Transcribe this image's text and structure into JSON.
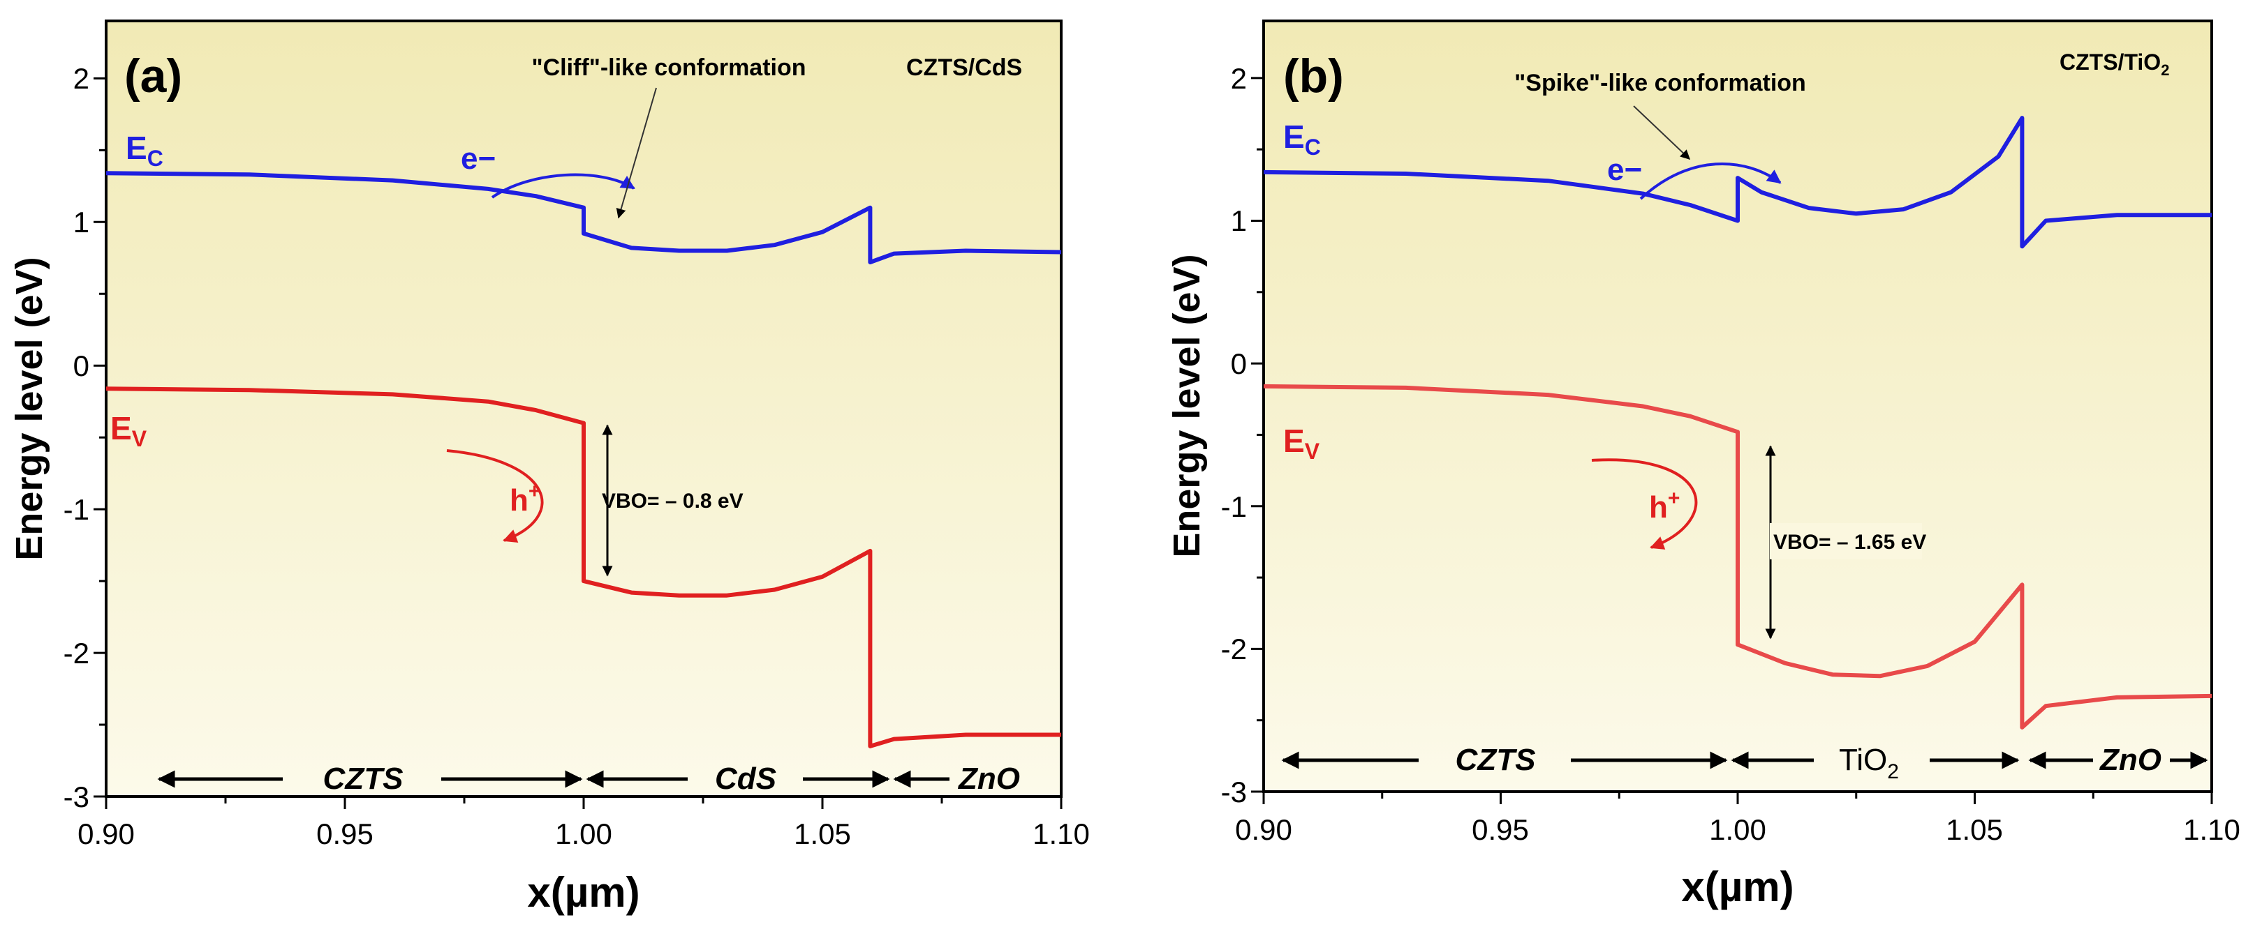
{
  "chart_data": [
    {
      "type": "line",
      "panel_label": "(a)",
      "material_label": "CZTS/CdS",
      "xlabel": "x(µm)",
      "ylabel": "Energy level (eV)",
      "xlim": [
        0.9,
        1.1
      ],
      "ylim": [
        -3,
        2.4
      ],
      "xticks": [
        "0.90",
        "0.95",
        "1.00",
        "1.05",
        "1.10"
      ],
      "yticks": [
        "-3",
        "-2",
        "-1",
        "0",
        "1",
        "2"
      ],
      "series": [
        {
          "name": "Ec",
          "label_main": "E",
          "label_sub": "C",
          "color": "#1f1fe0",
          "points": [
            [
              0.9,
              1.34
            ],
            [
              0.93,
              1.33
            ],
            [
              0.96,
              1.29
            ],
            [
              0.98,
              1.23
            ],
            [
              0.99,
              1.18
            ],
            [
              1.0,
              1.1
            ],
            [
              1.0,
              0.92
            ],
            [
              1.01,
              0.82
            ],
            [
              1.02,
              0.8
            ],
            [
              1.03,
              0.8
            ],
            [
              1.04,
              0.84
            ],
            [
              1.05,
              0.93
            ],
            [
              1.06,
              1.1
            ],
            [
              1.06,
              0.72
            ],
            [
              1.065,
              0.78
            ],
            [
              1.08,
              0.8
            ],
            [
              1.1,
              0.79
            ]
          ]
        },
        {
          "name": "Ev",
          "label_main": "E",
          "label_sub": "V",
          "color": "#e02020",
          "points": [
            [
              0.9,
              -0.16
            ],
            [
              0.93,
              -0.17
            ],
            [
              0.96,
              -0.2
            ],
            [
              0.98,
              -0.25
            ],
            [
              0.99,
              -0.31
            ],
            [
              1.0,
              -0.4
            ],
            [
              1.0,
              -1.5
            ],
            [
              1.01,
              -1.58
            ],
            [
              1.02,
              -1.6
            ],
            [
              1.03,
              -1.6
            ],
            [
              1.04,
              -1.56
            ],
            [
              1.05,
              -1.47
            ],
            [
              1.06,
              -1.29
            ],
            [
              1.06,
              -2.65
            ],
            [
              1.065,
              -2.6
            ],
            [
              1.08,
              -2.57
            ],
            [
              1.1,
              -2.57
            ]
          ]
        }
      ],
      "regions": [
        {
          "label": "CZTS",
          "start": 0.9,
          "end": 1.0
        },
        {
          "label": "CdS",
          "start": 1.0,
          "end": 1.06
        },
        {
          "label": "ZnO",
          "start": 1.06,
          "end": 1.1
        }
      ],
      "annotations": {
        "electron": "e−",
        "hole_main": "h",
        "hole_sup": "+",
        "conformation": "\"Cliff\"-like conformation",
        "vbo": "VBO= – 0.8 eV"
      }
    },
    {
      "type": "line",
      "panel_label": "(b)",
      "material_label_main": "CZTS/TiO",
      "material_label_sub": "2",
      "xlabel": "x(µm)",
      "ylabel": "Energy level (eV)",
      "xlim": [
        0.9,
        1.1
      ],
      "ylim": [
        -3,
        2.4
      ],
      "xticks": [
        "0.90",
        "0.95",
        "1.00",
        "1.05",
        "1.10"
      ],
      "yticks": [
        "-3",
        "-2",
        "-1",
        "0",
        "1",
        "2"
      ],
      "series": [
        {
          "name": "Ec",
          "label_main": "E",
          "label_sub": "C",
          "color": "#1f1fe0",
          "points": [
            [
              0.9,
              1.34
            ],
            [
              0.93,
              1.33
            ],
            [
              0.96,
              1.28
            ],
            [
              0.98,
              1.19
            ],
            [
              0.99,
              1.11
            ],
            [
              1.0,
              1.0
            ],
            [
              1.0,
              1.3
            ],
            [
              1.005,
              1.2
            ],
            [
              1.015,
              1.09
            ],
            [
              1.025,
              1.05
            ],
            [
              1.035,
              1.08
            ],
            [
              1.045,
              1.2
            ],
            [
              1.055,
              1.45
            ],
            [
              1.06,
              1.72
            ],
            [
              1.06,
              0.82
            ],
            [
              1.065,
              1.0
            ],
            [
              1.08,
              1.04
            ],
            [
              1.1,
              1.04
            ]
          ]
        },
        {
          "name": "Ev",
          "label_main": "E",
          "label_sub": "V",
          "color": "#e84a4a",
          "points": [
            [
              0.9,
              -0.16
            ],
            [
              0.93,
              -0.17
            ],
            [
              0.96,
              -0.22
            ],
            [
              0.98,
              -0.3
            ],
            [
              0.99,
              -0.37
            ],
            [
              1.0,
              -0.48
            ],
            [
              1.0,
              -1.97
            ],
            [
              1.01,
              -2.1
            ],
            [
              1.02,
              -2.18
            ],
            [
              1.03,
              -2.19
            ],
            [
              1.04,
              -2.12
            ],
            [
              1.05,
              -1.95
            ],
            [
              1.06,
              -1.55
            ],
            [
              1.06,
              -2.55
            ],
            [
              1.065,
              -2.4
            ],
            [
              1.08,
              -2.34
            ],
            [
              1.1,
              -2.33
            ]
          ]
        }
      ],
      "regions": [
        {
          "label": "CZTS",
          "start": 0.9,
          "end": 1.0
        },
        {
          "label_main": "TiO",
          "label_sub": "2",
          "start": 1.0,
          "end": 1.06
        },
        {
          "label": "ZnO",
          "start": 1.06,
          "end": 1.1
        }
      ],
      "annotations": {
        "electron": "e−",
        "hole_main": "h",
        "hole_sup": "+",
        "conformation": "\"Spike\"-like conformation",
        "vbo": "VBO= – 1.65 eV"
      }
    }
  ]
}
